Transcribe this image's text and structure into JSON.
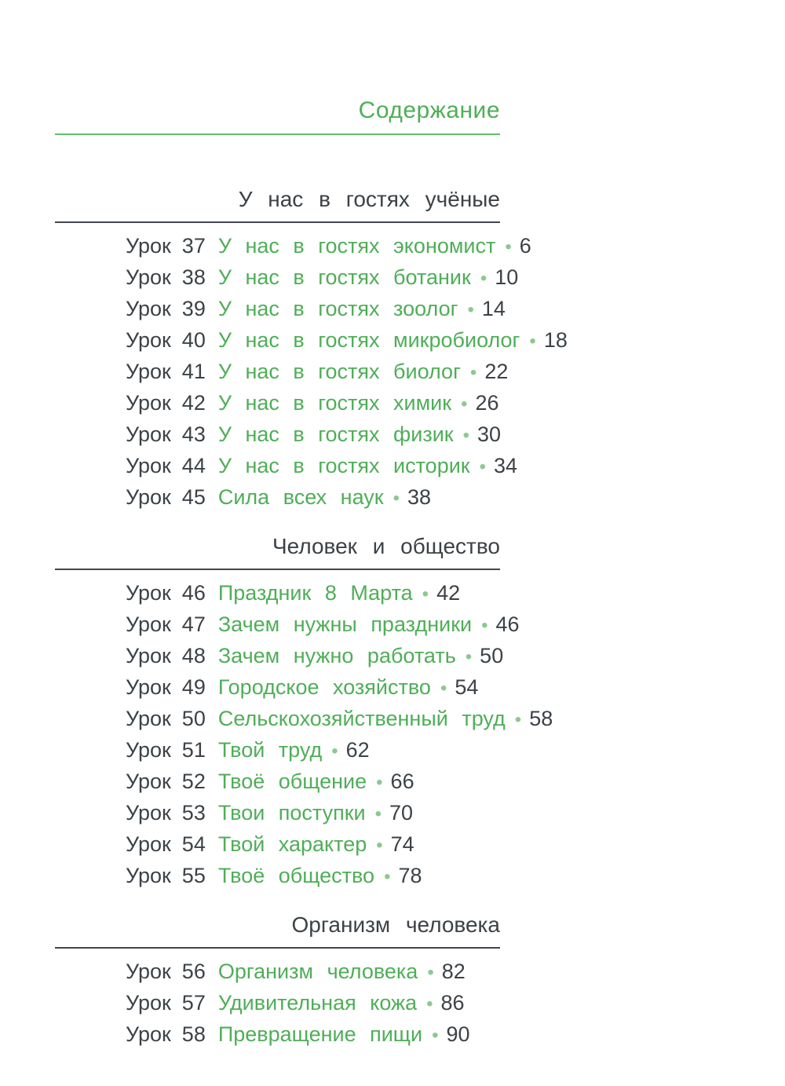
{
  "page": {
    "title": "Содержание",
    "lesson_label": "Урок",
    "separator": "•"
  },
  "colors": {
    "green_text": "#4fae58",
    "dark_text": "#3c4247",
    "green_line": "#66bd6c",
    "dark_line": "#40464b",
    "bullet": "#8cc98f",
    "background": "#ffffff"
  },
  "sections": [
    {
      "heading": "У нас в гостях учёные",
      "lessons": [
        {
          "number": "37",
          "title": "У нас в гостях экономист",
          "page": "6"
        },
        {
          "number": "38",
          "title": "У нас в гостях ботаник",
          "page": "10"
        },
        {
          "number": "39",
          "title": "У нас в гостях зоолог",
          "page": "14"
        },
        {
          "number": "40",
          "title": "У нас в гостях микробиолог",
          "page": "18"
        },
        {
          "number": "41",
          "title": "У нас в гостях биолог",
          "page": "22"
        },
        {
          "number": "42",
          "title": "У нас в гостях химик",
          "page": "26"
        },
        {
          "number": "43",
          "title": "У нас в гостях физик",
          "page": "30"
        },
        {
          "number": "44",
          "title": "У нас в гостях историк",
          "page": "34"
        },
        {
          "number": "45",
          "title": "Сила всех наук",
          "page": "38"
        }
      ]
    },
    {
      "heading": "Человек и общество",
      "lessons": [
        {
          "number": "46",
          "title": "Праздник 8 Марта",
          "page": "42"
        },
        {
          "number": "47",
          "title": "Зачем нужны праздники",
          "page": "46"
        },
        {
          "number": "48",
          "title": "Зачем нужно работать",
          "page": "50"
        },
        {
          "number": "49",
          "title": "Городское хозяйство",
          "page": "54"
        },
        {
          "number": "50",
          "title": "Сельскохозяйственный труд",
          "page": "58"
        },
        {
          "number": "51",
          "title": "Твой труд",
          "page": "62"
        },
        {
          "number": "52",
          "title": "Твоё общение",
          "page": "66"
        },
        {
          "number": "53",
          "title": "Твои поступки",
          "page": "70"
        },
        {
          "number": "54",
          "title": "Твой характер",
          "page": "74"
        },
        {
          "number": "55",
          "title": "Твоё общество",
          "page": "78"
        }
      ]
    },
    {
      "heading": "Организм человека",
      "lessons": [
        {
          "number": "56",
          "title": "Организм человека",
          "page": "82"
        },
        {
          "number": "57",
          "title": "Удивительная кожа",
          "page": "86"
        },
        {
          "number": "58",
          "title": "Превращение пищи",
          "page": "90"
        }
      ]
    }
  ]
}
